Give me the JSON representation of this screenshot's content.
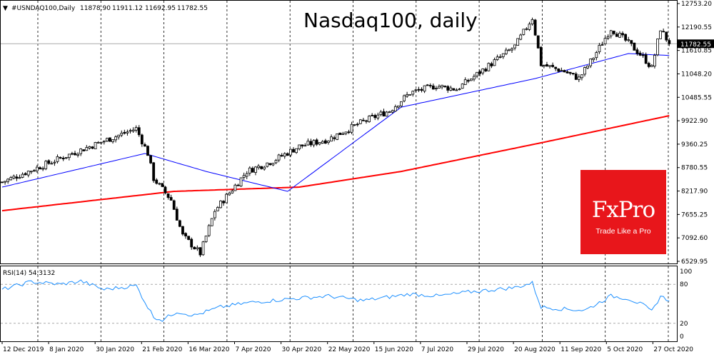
{
  "chart_data": {
    "type": "candlestick",
    "symbol_header": "#USNDAQ100,Daily",
    "ohlc_header": [
      "11878.90",
      "11911.12",
      "11692.95",
      "11782.55"
    ],
    "title": "Nasdaq100, daily",
    "last_price_label": "11782.55",
    "last_price": 11782.55,
    "ylim": [
      6529.95,
      12753.2
    ],
    "y_ticks": [
      "12753.20",
      "12190.55",
      "11610.85",
      "11048.20",
      "10485.55",
      "9922.90",
      "9360.25",
      "8780.55",
      "8217.90",
      "7655.25",
      "7092.60",
      "6529.95"
    ],
    "x_ticks": [
      "12 Dec 2019",
      "8 Jan 2020",
      "30 Jan 2020",
      "21 Feb 2020",
      "16 Mar 2020",
      "7 Apr 2020",
      "30 Apr 2020",
      "22 May 2020",
      "15 Jun 2020",
      "7 Jul 2020",
      "29 Jul 2020",
      "20 Aug 2020",
      "11 Sep 2020",
      "5 Oct 2020",
      "27 Oct 2020"
    ],
    "close_keypoints_day_price": [
      [
        0,
        8443
      ],
      [
        12,
        8788
      ],
      [
        27,
        9219
      ],
      [
        46,
        9736
      ],
      [
        50,
        9133
      ],
      [
        52,
        8529
      ],
      [
        58,
        8012
      ],
      [
        62,
        7150
      ],
      [
        68,
        6720
      ],
      [
        73,
        7753
      ],
      [
        78,
        8185
      ],
      [
        84,
        8700
      ],
      [
        93,
        8960
      ],
      [
        102,
        9305
      ],
      [
        112,
        9477
      ],
      [
        124,
        9908
      ],
      [
        133,
        10167
      ],
      [
        140,
        10598
      ],
      [
        149,
        10770
      ],
      [
        156,
        10684
      ],
      [
        166,
        11201
      ],
      [
        176,
        11718
      ],
      [
        182,
        12408
      ],
      [
        185,
        11287
      ],
      [
        193,
        11115
      ],
      [
        198,
        10943
      ],
      [
        203,
        11460
      ],
      [
        209,
        12150
      ],
      [
        215,
        11804
      ],
      [
        220,
        11460
      ],
      [
        223,
        11201
      ],
      [
        226,
        12150
      ],
      [
        229,
        11782.55
      ]
    ],
    "series": [
      {
        "name": "MA50",
        "color": "#0000ff",
        "keypoints_day_price": [
          [
            0,
            8322
          ],
          [
            49,
            9133
          ],
          [
            70,
            8700
          ],
          [
            98,
            8219
          ],
          [
            137,
            10253
          ],
          [
            183,
            10943
          ],
          [
            215,
            11546
          ],
          [
            229,
            11500
          ]
        ]
      },
      {
        "name": "MA200",
        "color": "#ff0000",
        "keypoints_day_price": [
          [
            0,
            7753
          ],
          [
            59,
            8219
          ],
          [
            102,
            8322
          ],
          [
            137,
            8700
          ],
          [
            185,
            9391
          ],
          [
            229,
            10046
          ]
        ]
      }
    ],
    "rsi": {
      "label": "RSI(14) 54.3132",
      "value": 54.3132,
      "color": "#1e90ff",
      "levels": [
        20,
        80
      ],
      "y_ticks": [
        "100",
        "80",
        "20",
        "0"
      ],
      "keypoints_day_value": [
        [
          0,
          72
        ],
        [
          10,
          84
        ],
        [
          20,
          80
        ],
        [
          27,
          85
        ],
        [
          35,
          72
        ],
        [
          46,
          78
        ],
        [
          50,
          45
        ],
        [
          52,
          30
        ],
        [
          55,
          25
        ],
        [
          60,
          38
        ],
        [
          66,
          32
        ],
        [
          75,
          45
        ],
        [
          85,
          52
        ],
        [
          100,
          58
        ],
        [
          112,
          62
        ],
        [
          124,
          55
        ],
        [
          140,
          65
        ],
        [
          150,
          62
        ],
        [
          160,
          68
        ],
        [
          176,
          75
        ],
        [
          182,
          82
        ],
        [
          185,
          45
        ],
        [
          193,
          42
        ],
        [
          200,
          40
        ],
        [
          205,
          52
        ],
        [
          209,
          62
        ],
        [
          215,
          58
        ],
        [
          220,
          48
        ],
        [
          223,
          38
        ],
        [
          226,
          62
        ],
        [
          229,
          54.3
        ]
      ]
    },
    "logo": {
      "brand": "FxPro",
      "tagline": "Trade Like a Pro",
      "color": "#e8161b"
    }
  }
}
